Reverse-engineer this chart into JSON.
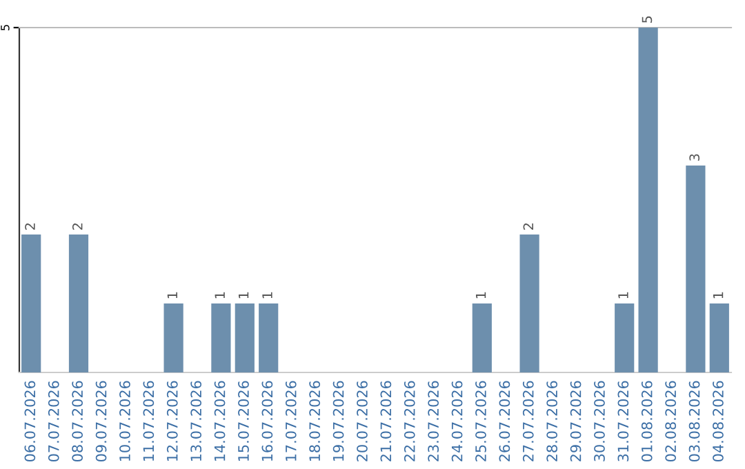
{
  "chart_data": {
    "type": "bar",
    "categories": [
      "06.07.2026",
      "07.07.2026",
      "08.07.2026",
      "09.07.2026",
      "10.07.2026",
      "11.07.2026",
      "12.07.2026",
      "13.07.2026",
      "14.07.2026",
      "15.07.2026",
      "16.07.2026",
      "17.07.2026",
      "18.07.2026",
      "19.07.2026",
      "20.07.2026",
      "21.07.2026",
      "22.07.2026",
      "23.07.2026",
      "24.07.2026",
      "25.07.2026",
      "26.07.2026",
      "27.07.2026",
      "28.07.2026",
      "29.07.2026",
      "30.07.2026",
      "31.07.2026",
      "01.08.2026",
      "02.08.2026",
      "03.08.2026",
      "04.08.2026"
    ],
    "values": [
      2,
      0,
      2,
      0,
      0,
      0,
      1,
      0,
      1,
      1,
      1,
      0,
      0,
      0,
      0,
      0,
      0,
      0,
      0,
      1,
      0,
      2,
      0,
      0,
      0,
      1,
      5,
      0,
      3,
      1
    ],
    "value_labels": [
      "2",
      null,
      "2",
      null,
      null,
      null,
      "1",
      null,
      "1",
      "1",
      "1",
      null,
      null,
      null,
      null,
      null,
      null,
      null,
      null,
      "1",
      null,
      "2",
      null,
      null,
      null,
      "1",
      "5",
      null,
      "3",
      "1"
    ],
    "color": "#6d8fad",
    "ylim": [
      0,
      5
    ],
    "yticks": [
      5
    ]
  }
}
